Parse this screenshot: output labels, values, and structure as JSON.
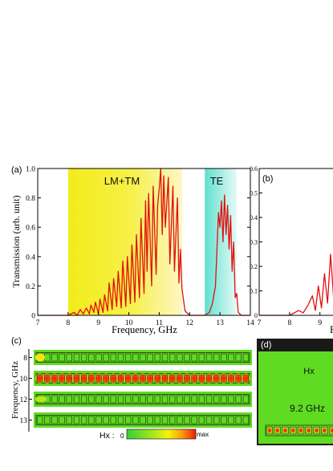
{
  "panel_a": {
    "label": "(a)",
    "region_labels": {
      "lm_tm": "LM+TM",
      "te": "TE"
    },
    "colors": {
      "lm_tm_start": "#f2ec1a",
      "lm_tm_end": "#fdf7c4",
      "te_start": "#5fe0cf",
      "te_end": "#e6faf7",
      "curve": "#e0100f"
    }
  },
  "panel_b": {
    "label": "(b)",
    "ytick_labels": [
      "0.6",
      "0.5",
      "0.4",
      "0.3",
      "0.2",
      "0.1",
      "0"
    ],
    "xtick_labels": [
      "7",
      "8",
      "9"
    ],
    "xlabel_fragment": "F"
  },
  "panel_c": {
    "label": "(c)",
    "ylabel": "Frequency, GHz",
    "row_labels": [
      "8",
      "10",
      "12",
      "13"
    ],
    "colorbar": {
      "label": "Hx :",
      "min_label": "0",
      "max_label": "max",
      "colors": [
        "#38d038",
        "#9be51c",
        "#f6f20e",
        "#f79d0a",
        "#ee1d0b"
      ]
    }
  },
  "panel_d": {
    "label": "(d)",
    "field_label": "Hx",
    "frequency_label": "9.2 GHz",
    "background": "#5fdb21"
  },
  "chart_data": [
    {
      "type": "line",
      "panel": "(a)",
      "xlabel": "Frequency, GHz",
      "ylabel": "Transmission (arb. unit)",
      "xlim": [
        7,
        14
      ],
      "ylim": [
        0,
        1.0
      ],
      "xticks": [
        7,
        8,
        9,
        10,
        11,
        12,
        13,
        14
      ],
      "yticks": [
        0,
        0.2,
        0.4,
        0.6,
        0.8,
        1.0
      ],
      "xtick_labels": [
        "7",
        "8",
        "9",
        "10",
        "11",
        "12",
        "13",
        "14"
      ],
      "ytick_labels": [
        "0",
        "0.2",
        "0.4",
        "0.6",
        "0.8",
        "1.0"
      ],
      "shaded_bands": [
        {
          "label": "LM+TM",
          "x": [
            8.0,
            11.75
          ]
        },
        {
          "label": "TE",
          "x": [
            12.5,
            13.55
          ]
        }
      ],
      "x": [
        7.0,
        8.0,
        8.2,
        8.3,
        8.4,
        8.5,
        8.6,
        8.7,
        8.75,
        8.85,
        8.9,
        9.0,
        9.05,
        9.15,
        9.2,
        9.3,
        9.35,
        9.45,
        9.5,
        9.6,
        9.65,
        9.75,
        9.8,
        9.9,
        9.95,
        10.05,
        10.1,
        10.2,
        10.25,
        10.35,
        10.4,
        10.5,
        10.55,
        10.6,
        10.65,
        10.75,
        10.8,
        10.9,
        10.95,
        11.0,
        11.05,
        11.1,
        11.15,
        11.2,
        11.3,
        11.35,
        11.45,
        11.5,
        11.6,
        11.65,
        11.7,
        11.75,
        11.85,
        12.0,
        12.5,
        12.65,
        12.75,
        12.85,
        12.9,
        12.95,
        13.0,
        13.05,
        13.1,
        13.15,
        13.2,
        13.25,
        13.3,
        13.35,
        13.4,
        13.45,
        13.5,
        13.55,
        13.6,
        13.7,
        14.0
      ],
      "y": [
        0.0,
        0.0,
        0.02,
        0.0,
        0.04,
        0.01,
        0.05,
        0.01,
        0.07,
        0.02,
        0.09,
        0.01,
        0.11,
        0.02,
        0.14,
        0.03,
        0.22,
        0.04,
        0.25,
        0.06,
        0.3,
        0.05,
        0.37,
        0.06,
        0.4,
        0.08,
        0.48,
        0.09,
        0.55,
        0.12,
        0.66,
        0.15,
        0.78,
        0.3,
        0.83,
        0.2,
        0.88,
        0.28,
        0.75,
        0.86,
        1.0,
        0.55,
        0.95,
        0.6,
        0.94,
        0.35,
        0.88,
        0.3,
        0.8,
        0.22,
        0.45,
        0.18,
        0.03,
        0.0,
        0.0,
        0.02,
        0.08,
        0.2,
        0.45,
        0.7,
        0.6,
        0.78,
        0.5,
        0.82,
        0.55,
        0.75,
        0.45,
        0.68,
        0.3,
        0.5,
        0.12,
        0.15,
        0.02,
        0.0,
        0.0
      ]
    },
    {
      "type": "line",
      "panel": "(b)",
      "xlim": [
        7,
        9.8
      ],
      "ylim": [
        0,
        0.6
      ],
      "xticks": [
        7,
        8,
        9
      ],
      "yticks": [
        0,
        0.1,
        0.2,
        0.3,
        0.4,
        0.5,
        0.6
      ],
      "x": [
        7.0,
        8.0,
        8.3,
        8.45,
        8.6,
        8.75,
        8.85,
        8.95,
        9.05,
        9.15,
        9.25,
        9.35,
        9.45,
        9.55,
        9.65,
        9.75,
        9.8
      ],
      "y": [
        0.0,
        0.0,
        0.02,
        0.01,
        0.04,
        0.08,
        0.02,
        0.12,
        0.03,
        0.17,
        0.05,
        0.25,
        0.07,
        0.32,
        0.12,
        0.28,
        0.3
      ]
    }
  ]
}
